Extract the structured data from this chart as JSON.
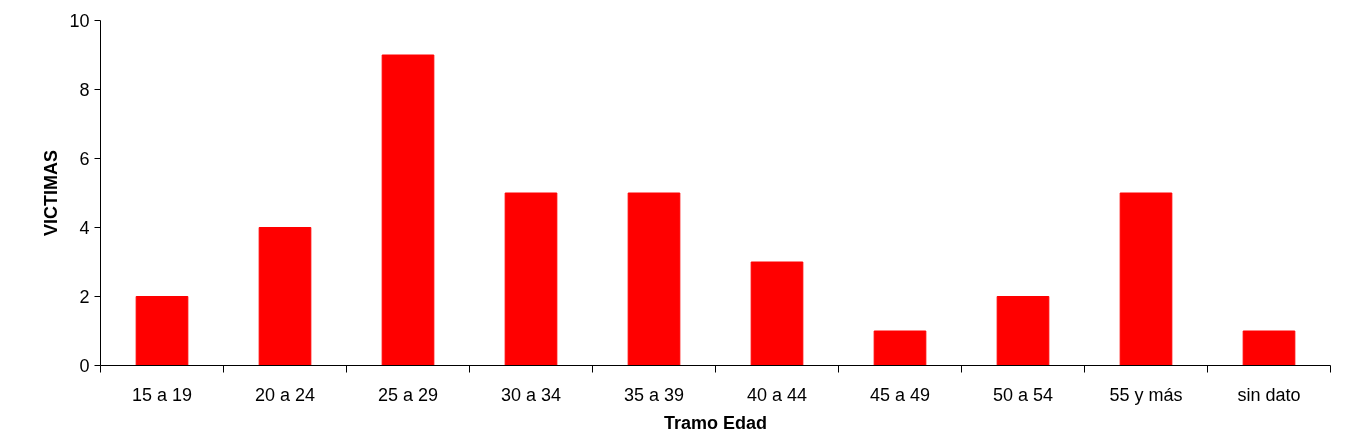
{
  "chart_data": {
    "type": "bar",
    "xlabel": "Tramo Edad",
    "ylabel": "VICTIMAS",
    "categories": [
      "15 a 19",
      "20 a 24",
      "25 a 29",
      "30 a 34",
      "35 a 39",
      "40 a 44",
      "45 a 49",
      "50 a 54",
      "55 y más",
      "sin dato"
    ],
    "values": [
      2,
      4,
      9,
      5,
      5,
      3,
      1,
      2,
      5,
      1
    ],
    "color": "#ff0000",
    "ylim": [
      0,
      10
    ],
    "yticks": [
      0,
      2,
      4,
      6,
      8,
      10
    ],
    "grid": false
  }
}
